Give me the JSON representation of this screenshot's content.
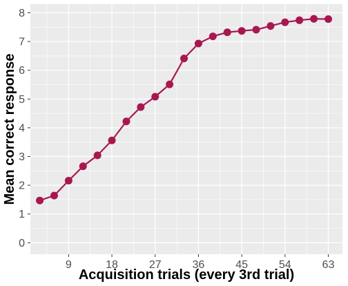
{
  "chart_data": {
    "type": "line",
    "title": "",
    "xlabel": "Acquisition trials (every 3rd trial)",
    "ylabel": "Mean correct response",
    "xlim": [
      1.05,
      65.95
    ],
    "ylim": [
      -0.4,
      8.3
    ],
    "x_ticks": [
      9,
      18,
      27,
      36,
      45,
      54,
      63
    ],
    "y_ticks": [
      0,
      1,
      2,
      3,
      4,
      5,
      6,
      7,
      8
    ],
    "grid": true,
    "legend": "none",
    "colors": {
      "series": "#a8174f",
      "panel": "#ebebeb",
      "grid": "#ffffff"
    },
    "series": [
      {
        "x": [
          3,
          6,
          9,
          12,
          15,
          18,
          21,
          24,
          27,
          30,
          33,
          36,
          39,
          42,
          45,
          48,
          51,
          54,
          57,
          60,
          63
        ],
        "values": [
          1.47,
          1.64,
          2.16,
          2.66,
          3.04,
          3.56,
          4.22,
          4.72,
          5.08,
          5.51,
          6.41,
          6.93,
          7.18,
          7.32,
          7.37,
          7.41,
          7.54,
          7.67,
          7.74,
          7.79,
          7.78
        ]
      }
    ]
  }
}
